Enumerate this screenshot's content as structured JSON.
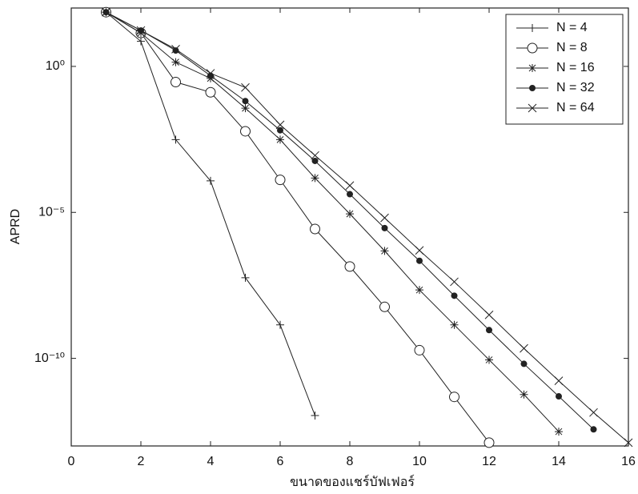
{
  "chart_data": {
    "type": "line",
    "xlabel": "ขนาดของแชร์บัฟเฟอร์",
    "ylabel": "APRD",
    "xlim": [
      0,
      16
    ],
    "xticks": [
      0,
      2,
      4,
      6,
      8,
      10,
      12,
      14,
      16
    ],
    "ylim": [
      1e-13,
      100
    ],
    "yscale": "log",
    "yticks": [
      {
        "value": 1,
        "label": "10⁰"
      },
      {
        "value": 1e-05,
        "label": "10⁻⁵"
      },
      {
        "value": 1e-10,
        "label": "10⁻¹⁰"
      }
    ],
    "grid": false,
    "legend": "upper right",
    "series": [
      {
        "name": "N = 4",
        "color": "#222222",
        "marker": "plus",
        "x": [
          1,
          2,
          3,
          4,
          5,
          6,
          7
        ],
        "values": [
          72,
          7.2,
          0.0031,
          0.00012,
          5.8e-08,
          1.4e-09,
          1.1e-12
        ]
      },
      {
        "name": "N = 8",
        "color": "#222222",
        "marker": "circle",
        "x": [
          1,
          2,
          3,
          4,
          5,
          6,
          7,
          8,
          9,
          10,
          11,
          12
        ],
        "values": [
          72,
          14,
          0.29,
          0.13,
          0.006,
          0.00013,
          2.7e-06,
          1.4e-07,
          5.8e-09,
          1.9e-10,
          4.8e-12,
          1.3e-13
        ]
      },
      {
        "name": "N = 16",
        "color": "#222222",
        "marker": "asterisk",
        "x": [
          1,
          2,
          3,
          4,
          5,
          6,
          7,
          8,
          9,
          10,
          11,
          12,
          13,
          14
        ],
        "values": [
          72,
          14,
          1.4,
          0.39,
          0.037,
          0.0031,
          0.00015,
          8.9e-06,
          4.8e-07,
          2.2e-08,
          1.4e-09,
          8.9e-11,
          5.8e-12,
          3.1e-13
        ]
      },
      {
        "name": "N = 32",
        "color": "#222222",
        "marker": "dot",
        "x": [
          1,
          2,
          3,
          4,
          5,
          6,
          7,
          8,
          9,
          10,
          11,
          12,
          13,
          14,
          15
        ],
        "values": [
          72,
          17,
          3.5,
          0.48,
          0.065,
          0.0065,
          0.00058,
          4.2e-05,
          2.9e-06,
          2.2e-07,
          1.4e-08,
          9.3e-10,
          6.5e-11,
          5e-12,
          3.7e-13
        ]
      },
      {
        "name": "N = 64",
        "color": "#222222",
        "marker": "x",
        "x": [
          1,
          2,
          3,
          4,
          5,
          6,
          7,
          8,
          9,
          10,
          11,
          12,
          13,
          14,
          15,
          16
        ],
        "values": [
          72,
          17,
          3.9,
          0.58,
          0.19,
          0.01,
          0.00089,
          8.3e-05,
          6.5e-06,
          5e-07,
          4.2e-08,
          3.1e-09,
          2.2e-10,
          1.7e-11,
          1.4e-12,
          1.3e-13
        ]
      }
    ]
  }
}
